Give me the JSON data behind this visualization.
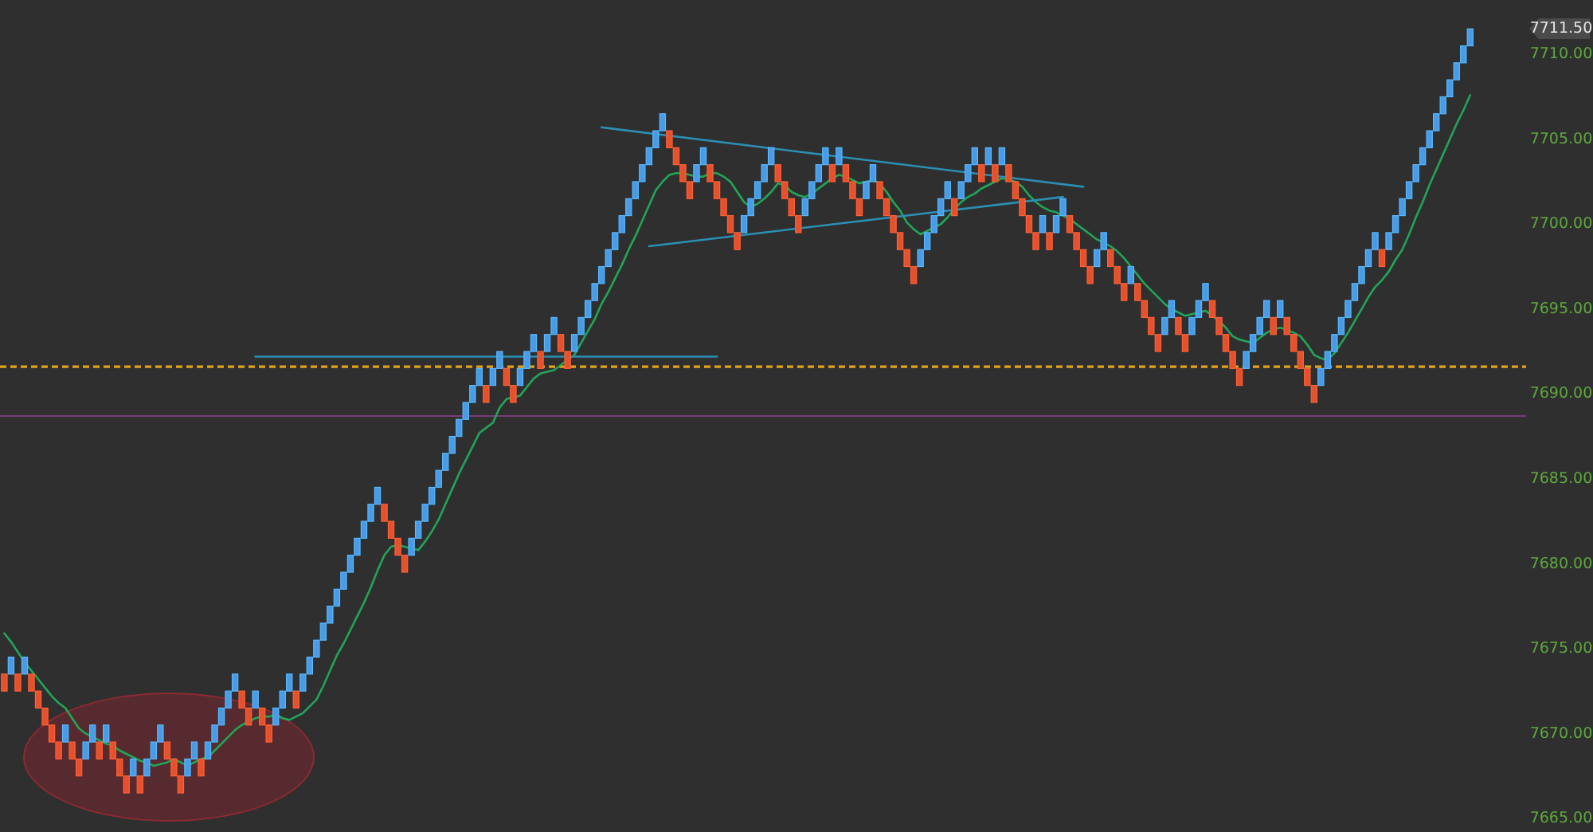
{
  "chart_data": {
    "type": "candlestick",
    "categories": [
      null,
      null,
      null,
      null,
      null,
      null,
      null,
      null,
      null,
      null,
      null,
      null,
      null,
      null,
      null,
      null,
      null,
      null,
      null,
      null,
      null,
      null,
      null,
      null,
      null,
      null,
      null,
      null,
      null,
      null,
      null,
      null,
      null,
      null,
      null,
      null,
      null,
      null,
      null,
      null,
      null,
      null,
      null,
      null,
      null,
      null,
      null,
      null,
      null,
      null,
      null,
      null,
      null,
      null,
      null,
      null,
      null,
      null,
      null,
      null,
      null,
      null,
      null,
      null,
      null,
      null,
      null,
      null,
      null,
      null,
      null,
      null,
      null,
      null,
      null,
      null,
      null,
      null,
      null,
      null,
      null,
      null,
      null,
      null,
      null,
      null,
      null,
      null,
      null,
      null,
      null,
      null,
      null,
      null,
      null,
      null,
      null,
      null,
      null,
      null,
      null,
      null,
      null,
      null,
      null,
      null,
      null,
      null,
      null,
      null,
      null,
      null,
      null,
      null,
      null,
      null,
      null,
      null,
      null,
      null,
      null,
      null,
      null,
      null,
      null,
      null,
      null,
      null,
      null,
      null,
      null,
      null,
      null,
      null,
      null,
      null,
      null,
      null,
      null,
      null,
      null,
      null,
      null,
      null,
      null,
      null,
      null,
      null,
      null,
      null,
      null,
      null,
      null,
      null,
      null,
      null,
      null,
      null,
      null,
      null,
      null,
      null,
      null,
      null,
      null,
      null,
      null,
      null,
      null,
      null,
      null,
      null,
      null,
      null,
      null,
      null,
      null,
      null,
      null,
      null,
      null,
      null,
      null,
      null,
      null,
      null,
      null,
      null,
      null,
      null,
      null,
      null,
      null,
      null,
      null,
      null,
      null,
      null,
      null,
      null,
      null,
      null,
      null,
      null,
      null,
      null,
      null,
      null,
      null,
      null,
      null,
      null,
      null,
      null,
      null,
      null,
      null
    ],
    "ohlc": [
      [
        7673.5,
        7673.5,
        7672.5,
        7672.5
      ],
      [
        7673.5,
        7674.5,
        7673.5,
        7674.5
      ],
      [
        7673.5,
        7673.5,
        7672.5,
        7672.5
      ],
      [
        7673.5,
        7674.5,
        7673.5,
        7674.5
      ],
      [
        7673.5,
        7673.5,
        7672.5,
        7672.5
      ],
      [
        7672.5,
        7672.5,
        7671.5,
        7671.5
      ],
      [
        7671.5,
        7671.5,
        7670.5,
        7670.5
      ],
      [
        7670.5,
        7670.5,
        7669.5,
        7669.5
      ],
      [
        7669.5,
        7669.5,
        7668.5,
        7668.5
      ],
      [
        7669.5,
        7670.5,
        7669.5,
        7670.5
      ],
      [
        7669.5,
        7669.5,
        7668.5,
        7668.5
      ],
      [
        7668.5,
        7668.5,
        7667.5,
        7667.5
      ],
      [
        7668.5,
        7669.5,
        7668.5,
        7669.5
      ],
      [
        7669.5,
        7670.5,
        7669.5,
        7670.5
      ],
      [
        7669.5,
        7669.5,
        7668.5,
        7668.5
      ],
      [
        7669.5,
        7670.5,
        7669.5,
        7670.5
      ],
      [
        7669.5,
        7669.5,
        7668.5,
        7668.5
      ],
      [
        7668.5,
        7668.5,
        7667.5,
        7667.5
      ],
      [
        7667.5,
        7667.5,
        7666.5,
        7666.5
      ],
      [
        7667.5,
        7668.5,
        7667.5,
        7668.5
      ],
      [
        7667.5,
        7667.5,
        7666.5,
        7666.5
      ],
      [
        7667.5,
        7668.5,
        7667.5,
        7668.5
      ],
      [
        7668.5,
        7669.5,
        7668.5,
        7669.5
      ],
      [
        7669.5,
        7670.5,
        7669.5,
        7670.5
      ],
      [
        7669.5,
        7669.5,
        7668.5,
        7668.5
      ],
      [
        7668.5,
        7668.5,
        7667.5,
        7667.5
      ],
      [
        7667.5,
        7667.5,
        7666.5,
        7666.5
      ],
      [
        7667.5,
        7668.5,
        7667.5,
        7668.5
      ],
      [
        7668.5,
        7669.5,
        7668.5,
        7669.5
      ],
      [
        7668.5,
        7668.5,
        7667.5,
        7667.5
      ],
      [
        7668.5,
        7669.5,
        7668.5,
        7669.5
      ],
      [
        7669.5,
        7670.5,
        7669.5,
        7670.5
      ],
      [
        7670.5,
        7671.5,
        7670.5,
        7671.5
      ],
      [
        7671.5,
        7672.5,
        7671.5,
        7672.5
      ],
      [
        7672.5,
        7673.5,
        7672.5,
        7673.5
      ],
      [
        7672.5,
        7672.5,
        7671.5,
        7671.5
      ],
      [
        7671.5,
        7671.5,
        7670.5,
        7670.5
      ],
      [
        7671.5,
        7672.5,
        7671.5,
        7672.5
      ],
      [
        7671.5,
        7671.5,
        7670.5,
        7670.5
      ],
      [
        7670.5,
        7670.5,
        7669.5,
        7669.5
      ],
      [
        7670.5,
        7671.5,
        7670.5,
        7671.5
      ],
      [
        7671.5,
        7672.5,
        7671.5,
        7672.5
      ],
      [
        7672.5,
        7673.5,
        7672.5,
        7673.5
      ],
      [
        7672.5,
        7672.5,
        7671.5,
        7671.5
      ],
      [
        7672.5,
        7673.5,
        7672.5,
        7673.5
      ],
      [
        7673.5,
        7674.5,
        7673.5,
        7674.5
      ],
      [
        7674.5,
        7675.5,
        7674.5,
        7675.5
      ],
      [
        7675.5,
        7676.5,
        7675.5,
        7676.5
      ],
      [
        7676.5,
        7677.5,
        7676.5,
        7677.5
      ],
      [
        7677.5,
        7678.5,
        7677.5,
        7678.5
      ],
      [
        7678.5,
        7679.5,
        7678.5,
        7679.5
      ],
      [
        7679.5,
        7680.5,
        7679.5,
        7680.5
      ],
      [
        7680.5,
        7681.5,
        7680.5,
        7681.5
      ],
      [
        7681.5,
        7682.5,
        7681.5,
        7682.5
      ],
      [
        7682.5,
        7683.5,
        7682.5,
        7683.5
      ],
      [
        7683.5,
        7684.5,
        7683.5,
        7684.5
      ],
      [
        7683.5,
        7683.5,
        7682.5,
        7682.5
      ],
      [
        7682.5,
        7682.5,
        7681.5,
        7681.5
      ],
      [
        7681.5,
        7681.5,
        7680.5,
        7680.5
      ],
      [
        7680.5,
        7680.5,
        7679.5,
        7679.5
      ],
      [
        7680.5,
        7681.5,
        7680.5,
        7681.5
      ],
      [
        7681.5,
        7682.5,
        7681.5,
        7682.5
      ],
      [
        7682.5,
        7683.5,
        7682.5,
        7683.5
      ],
      [
        7683.5,
        7684.5,
        7683.5,
        7684.5
      ],
      [
        7684.5,
        7685.5,
        7684.5,
        7685.5
      ],
      [
        7685.5,
        7686.5,
        7685.5,
        7686.5
      ],
      [
        7686.5,
        7687.5,
        7686.5,
        7687.5
      ],
      [
        7687.5,
        7688.5,
        7687.5,
        7688.5
      ],
      [
        7688.5,
        7689.5,
        7688.5,
        7689.5
      ],
      [
        7689.5,
        7690.5,
        7689.5,
        7690.5
      ],
      [
        7690.5,
        7691.5,
        7690.5,
        7691.5
      ],
      [
        7690.5,
        7690.5,
        7689.5,
        7689.5
      ],
      [
        7690.5,
        7691.5,
        7690.5,
        7691.5
      ],
      [
        7691.5,
        7692.5,
        7691.5,
        7692.5
      ],
      [
        7691.5,
        7691.5,
        7690.5,
        7690.5
      ],
      [
        7690.5,
        7690.5,
        7689.5,
        7689.5
      ],
      [
        7690.5,
        7691.5,
        7690.5,
        7691.5
      ],
      [
        7691.5,
        7692.5,
        7691.5,
        7692.5
      ],
      [
        7692.5,
        7693.5,
        7692.5,
        7693.5
      ],
      [
        7692.5,
        7692.5,
        7691.5,
        7691.5
      ],
      [
        7692.5,
        7693.5,
        7692.5,
        7693.5
      ],
      [
        7693.5,
        7694.5,
        7693.5,
        7694.5
      ],
      [
        7693.5,
        7693.5,
        7692.5,
        7692.5
      ],
      [
        7692.5,
        7692.5,
        7691.5,
        7691.5
      ],
      [
        7692.5,
        7693.5,
        7692.5,
        7693.5
      ],
      [
        7693.5,
        7694.5,
        7693.5,
        7694.5
      ],
      [
        7694.5,
        7695.5,
        7694.5,
        7695.5
      ],
      [
        7695.5,
        7696.5,
        7695.5,
        7696.5
      ],
      [
        7696.5,
        7697.5,
        7696.5,
        7697.5
      ],
      [
        7697.5,
        7698.5,
        7697.5,
        7698.5
      ],
      [
        7698.5,
        7699.5,
        7698.5,
        7699.5
      ],
      [
        7699.5,
        7700.5,
        7699.5,
        7700.5
      ],
      [
        7700.5,
        7701.5,
        7700.5,
        7701.5
      ],
      [
        7701.5,
        7702.5,
        7701.5,
        7702.5
      ],
      [
        7702.5,
        7703.5,
        7702.5,
        7703.5
      ],
      [
        7703.5,
        7704.5,
        7703.5,
        7704.5
      ],
      [
        7704.5,
        7705.5,
        7704.5,
        7705.5
      ],
      [
        7705.5,
        7706.5,
        7705.5,
        7706.5
      ],
      [
        7705.5,
        7705.5,
        7704.5,
        7704.5
      ],
      [
        7704.5,
        7704.5,
        7703.5,
        7703.5
      ],
      [
        7703.5,
        7703.5,
        7702.5,
        7702.5
      ],
      [
        7702.5,
        7702.5,
        7701.5,
        7701.5
      ],
      [
        7702.5,
        7703.5,
        7702.5,
        7703.5
      ],
      [
        7703.5,
        7704.5,
        7703.5,
        7704.5
      ],
      [
        7703.5,
        7703.5,
        7702.5,
        7702.5
      ],
      [
        7702.5,
        7702.5,
        7701.5,
        7701.5
      ],
      [
        7701.5,
        7701.5,
        7700.5,
        7700.5
      ],
      [
        7700.5,
        7700.5,
        7699.5,
        7699.5
      ],
      [
        7699.5,
        7699.5,
        7698.5,
        7698.5
      ],
      [
        7699.5,
        7700.5,
        7699.5,
        7700.5
      ],
      [
        7700.5,
        7701.5,
        7700.5,
        7701.5
      ],
      [
        7701.5,
        7702.5,
        7701.5,
        7702.5
      ],
      [
        7702.5,
        7703.5,
        7702.5,
        7703.5
      ],
      [
        7703.5,
        7704.5,
        7703.5,
        7704.5
      ],
      [
        7703.5,
        7703.5,
        7702.5,
        7702.5
      ],
      [
        7702.5,
        7702.5,
        7701.5,
        7701.5
      ],
      [
        7701.5,
        7701.5,
        7700.5,
        7700.5
      ],
      [
        7700.5,
        7700.5,
        7699.5,
        7699.5
      ],
      [
        7700.5,
        7701.5,
        7700.5,
        7701.5
      ],
      [
        7701.5,
        7702.5,
        7701.5,
        7702.5
      ],
      [
        7702.5,
        7703.5,
        7702.5,
        7703.5
      ],
      [
        7703.5,
        7704.5,
        7703.5,
        7704.5
      ],
      [
        7703.5,
        7703.5,
        7702.5,
        7702.5
      ],
      [
        7703.5,
        7704.5,
        7703.5,
        7704.5
      ],
      [
        7703.5,
        7703.5,
        7702.5,
        7702.5
      ],
      [
        7702.5,
        7702.5,
        7701.5,
        7701.5
      ],
      [
        7701.5,
        7701.5,
        7700.5,
        7700.5
      ],
      [
        7701.5,
        7702.5,
        7701.5,
        7702.5
      ],
      [
        7702.5,
        7703.5,
        7702.5,
        7703.5
      ],
      [
        7702.5,
        7702.5,
        7701.5,
        7701.5
      ],
      [
        7701.5,
        7701.5,
        7700.5,
        7700.5
      ],
      [
        7700.5,
        7700.5,
        7699.5,
        7699.5
      ],
      [
        7699.5,
        7699.5,
        7698.5,
        7698.5
      ],
      [
        7698.5,
        7698.5,
        7697.5,
        7697.5
      ],
      [
        7697.5,
        7697.5,
        7696.5,
        7696.5
      ],
      [
        7697.5,
        7698.5,
        7697.5,
        7698.5
      ],
      [
        7698.5,
        7699.5,
        7698.5,
        7699.5
      ],
      [
        7699.5,
        7700.5,
        7699.5,
        7700.5
      ],
      [
        7700.5,
        7701.5,
        7700.5,
        7701.5
      ],
      [
        7701.5,
        7702.5,
        7701.5,
        7702.5
      ],
      [
        7701.5,
        7701.5,
        7700.5,
        7700.5
      ],
      [
        7701.5,
        7702.5,
        7701.5,
        7702.5
      ],
      [
        7702.5,
        7703.5,
        7702.5,
        7703.5
      ],
      [
        7703.5,
        7704.5,
        7703.5,
        7704.5
      ],
      [
        7703.5,
        7703.5,
        7702.5,
        7702.5
      ],
      [
        7703.5,
        7704.5,
        7703.5,
        7704.5
      ],
      [
        7703.5,
        7703.5,
        7702.5,
        7702.5
      ],
      [
        7703.5,
        7704.5,
        7703.5,
        7704.5
      ],
      [
        7703.5,
        7703.5,
        7702.5,
        7702.5
      ],
      [
        7702.5,
        7702.5,
        7701.5,
        7701.5
      ],
      [
        7701.5,
        7701.5,
        7700.5,
        7700.5
      ],
      [
        7700.5,
        7700.5,
        7699.5,
        7699.5
      ],
      [
        7699.5,
        7699.5,
        7698.5,
        7698.5
      ],
      [
        7699.5,
        7700.5,
        7699.5,
        7700.5
      ],
      [
        7699.5,
        7699.5,
        7698.5,
        7698.5
      ],
      [
        7699.5,
        7700.5,
        7699.5,
        7700.5
      ],
      [
        7700.5,
        7701.5,
        7700.5,
        7701.5
      ],
      [
        7700.5,
        7700.5,
        7699.5,
        7699.5
      ],
      [
        7699.5,
        7699.5,
        7698.5,
        7698.5
      ],
      [
        7698.5,
        7698.5,
        7697.5,
        7697.5
      ],
      [
        7697.5,
        7697.5,
        7696.5,
        7696.5
      ],
      [
        7697.5,
        7698.5,
        7697.5,
        7698.5
      ],
      [
        7698.5,
        7699.5,
        7698.5,
        7699.5
      ],
      [
        7698.5,
        7698.5,
        7697.5,
        7697.5
      ],
      [
        7697.5,
        7697.5,
        7696.5,
        7696.5
      ],
      [
        7696.5,
        7696.5,
        7695.5,
        7695.5
      ],
      [
        7696.5,
        7697.5,
        7696.5,
        7697.5
      ],
      [
        7696.5,
        7696.5,
        7695.5,
        7695.5
      ],
      [
        7695.5,
        7695.5,
        7694.5,
        7694.5
      ],
      [
        7694.5,
        7694.5,
        7693.5,
        7693.5
      ],
      [
        7693.5,
        7693.5,
        7692.5,
        7692.5
      ],
      [
        7693.5,
        7694.5,
        7693.5,
        7694.5
      ],
      [
        7694.5,
        7695.5,
        7694.5,
        7695.5
      ],
      [
        7694.5,
        7694.5,
        7693.5,
        7693.5
      ],
      [
        7693.5,
        7693.5,
        7692.5,
        7692.5
      ],
      [
        7693.5,
        7694.5,
        7693.5,
        7694.5
      ],
      [
        7694.5,
        7695.5,
        7694.5,
        7695.5
      ],
      [
        7695.5,
        7696.5,
        7695.5,
        7696.5
      ],
      [
        7695.5,
        7695.5,
        7694.5,
        7694.5
      ],
      [
        7694.5,
        7694.5,
        7693.5,
        7693.5
      ],
      [
        7693.5,
        7693.5,
        7692.5,
        7692.5
      ],
      [
        7692.5,
        7692.5,
        7691.5,
        7691.5
      ],
      [
        7691.5,
        7691.5,
        7690.5,
        7690.5
      ],
      [
        7691.5,
        7692.5,
        7691.5,
        7692.5
      ],
      [
        7692.5,
        7693.5,
        7692.5,
        7693.5
      ],
      [
        7693.5,
        7694.5,
        7693.5,
        7694.5
      ],
      [
        7694.5,
        7695.5,
        7694.5,
        7695.5
      ],
      [
        7694.5,
        7694.5,
        7693.5,
        7693.5
      ],
      [
        7694.5,
        7695.5,
        7694.5,
        7695.5
      ],
      [
        7694.5,
        7694.5,
        7693.5,
        7693.5
      ],
      [
        7693.5,
        7693.5,
        7692.5,
        7692.5
      ],
      [
        7692.5,
        7692.5,
        7691.5,
        7691.5
      ],
      [
        7691.5,
        7691.5,
        7690.5,
        7690.5
      ],
      [
        7690.5,
        7690.5,
        7689.5,
        7689.5
      ],
      [
        7690.5,
        7691.5,
        7690.5,
        7691.5
      ],
      [
        7691.5,
        7692.5,
        7691.5,
        7692.5
      ],
      [
        7692.5,
        7693.5,
        7692.5,
        7693.5
      ],
      [
        7693.5,
        7694.5,
        7693.5,
        7694.5
      ],
      [
        7694.5,
        7695.5,
        7694.5,
        7695.5
      ],
      [
        7695.5,
        7696.5,
        7695.5,
        7696.5
      ],
      [
        7696.5,
        7697.5,
        7696.5,
        7697.5
      ],
      [
        7697.5,
        7698.5,
        7697.5,
        7698.5
      ],
      [
        7698.5,
        7699.5,
        7698.5,
        7699.5
      ],
      [
        7698.5,
        7698.5,
        7697.5,
        7697.5
      ],
      [
        7698.5,
        7699.5,
        7698.5,
        7699.5
      ],
      [
        7699.5,
        7700.5,
        7699.5,
        7700.5
      ],
      [
        7700.5,
        7701.5,
        7700.5,
        7701.5
      ],
      [
        7701.5,
        7702.5,
        7701.5,
        7702.5
      ],
      [
        7702.5,
        7703.5,
        7702.5,
        7703.5
      ],
      [
        7703.5,
        7704.5,
        7703.5,
        7704.5
      ],
      [
        7704.5,
        7705.5,
        7704.5,
        7705.5
      ],
      [
        7705.5,
        7706.5,
        7705.5,
        7706.5
      ],
      [
        7706.5,
        7707.5,
        7706.5,
        7707.5
      ],
      [
        7707.5,
        7708.5,
        7707.5,
        7708.5
      ],
      [
        7708.5,
        7709.5,
        7708.5,
        7709.5
      ],
      [
        7709.5,
        7710.5,
        7709.5,
        7710.5
      ],
      [
        7710.5,
        7711.5,
        7710.5,
        7711.5
      ]
    ],
    "colors": [
      "#e5512d",
      "#4a9be6",
      "#e5512d",
      "#4a9be6",
      "#e5512d",
      "#e5512d",
      "#e5512d",
      "#e5512d",
      "#e5512d",
      "#4a9be6",
      "#e5512d",
      "#e5512d",
      "#4a9be6",
      "#4a9be6",
      "#e5512d",
      "#4a9be6",
      "#e5512d",
      "#e5512d",
      "#e5512d",
      "#4a9be6",
      "#e5512d",
      "#4a9be6",
      "#4a9be6",
      "#4a9be6",
      "#e5512d",
      "#e5512d",
      "#e5512d",
      "#4a9be6",
      "#4a9be6",
      "#e5512d",
      "#4a9be6",
      "#4a9be6",
      "#4a9be6",
      "#4a9be6",
      "#4a9be6",
      "#e5512d",
      "#e5512d",
      "#4a9be6",
      "#e5512d",
      "#e5512d",
      "#4a9be6",
      "#4a9be6",
      "#4a9be6",
      "#e5512d",
      "#4a9be6",
      "#4a9be6",
      "#4a9be6",
      "#4a9be6",
      "#4a9be6",
      "#4a9be6",
      "#4a9be6",
      "#4a9be6",
      "#4a9be6",
      "#4a9be6",
      "#4a9be6",
      "#4a9be6",
      "#e5512d",
      "#e5512d",
      "#e5512d",
      "#e5512d",
      "#4a9be6",
      "#4a9be6",
      "#4a9be6",
      "#4a9be6",
      "#4a9be6",
      "#4a9be6",
      "#4a9be6",
      "#4a9be6",
      "#4a9be6",
      "#4a9be6",
      "#4a9be6",
      "#e5512d",
      "#4a9be6",
      "#4a9be6",
      "#e5512d",
      "#e5512d",
      "#4a9be6",
      "#4a9be6",
      "#4a9be6",
      "#e5512d",
      "#4a9be6",
      "#4a9be6",
      "#e5512d",
      "#e5512d",
      "#4a9be6",
      "#4a9be6",
      "#4a9be6",
      "#4a9be6",
      "#4a9be6",
      "#4a9be6",
      "#4a9be6",
      "#4a9be6",
      "#4a9be6",
      "#4a9be6",
      "#4a9be6",
      "#4a9be6",
      "#4a9be6",
      "#4a9be6",
      "#e5512d",
      "#e5512d",
      "#e5512d",
      "#e5512d",
      "#4a9be6",
      "#4a9be6",
      "#e5512d",
      "#e5512d",
      "#e5512d",
      "#e5512d",
      "#e5512d",
      "#4a9be6",
      "#4a9be6",
      "#4a9be6",
      "#4a9be6",
      "#4a9be6",
      "#e5512d",
      "#e5512d",
      "#e5512d",
      "#e5512d",
      "#4a9be6",
      "#4a9be6",
      "#4a9be6",
      "#4a9be6",
      "#e5512d",
      "#4a9be6",
      "#e5512d",
      "#e5512d",
      "#e5512d",
      "#4a9be6",
      "#4a9be6",
      "#e5512d",
      "#e5512d",
      "#e5512d",
      "#e5512d",
      "#e5512d",
      "#e5512d",
      "#4a9be6",
      "#4a9be6",
      "#4a9be6",
      "#4a9be6",
      "#4a9be6",
      "#e5512d",
      "#4a9be6",
      "#4a9be6",
      "#4a9be6",
      "#e5512d",
      "#4a9be6",
      "#e5512d",
      "#4a9be6",
      "#e5512d",
      "#e5512d",
      "#e5512d",
      "#e5512d",
      "#e5512d",
      "#4a9be6",
      "#e5512d",
      "#4a9be6",
      "#4a9be6",
      "#e5512d",
      "#e5512d",
      "#e5512d",
      "#e5512d",
      "#4a9be6",
      "#4a9be6",
      "#e5512d",
      "#e5512d",
      "#e5512d",
      "#4a9be6",
      "#e5512d",
      "#e5512d",
      "#e5512d",
      "#e5512d",
      "#4a9be6",
      "#4a9be6",
      "#e5512d",
      "#e5512d",
      "#4a9be6",
      "#4a9be6",
      "#4a9be6",
      "#e5512d",
      "#e5512d",
      "#e5512d",
      "#e5512d",
      "#e5512d",
      "#4a9be6",
      "#4a9be6",
      "#4a9be6",
      "#4a9be6",
      "#e5512d",
      "#4a9be6",
      "#e5512d",
      "#e5512d",
      "#e5512d",
      "#e5512d",
      "#e5512d",
      "#4a9be6",
      "#4a9be6",
      "#4a9be6",
      "#4a9be6",
      "#4a9be6",
      "#4a9be6",
      "#4a9be6",
      "#4a9be6",
      "#4a9be6",
      "#e5512d",
      "#4a9be6",
      "#4a9be6",
      "#4a9be6",
      "#4a9be6",
      "#4a9be6",
      "#4a9be6",
      "#4a9be6",
      "#4a9be6",
      "#4a9be6",
      "#4a9be6",
      "#4a9be6",
      "#4a9be6",
      "#4a9be6"
    ],
    "series": [
      {
        "type": "line",
        "color": "#22a558",
        "values": [
          7675.9,
          7675.4,
          7674.8,
          7674.2,
          7673.7,
          7673.2,
          7672.7,
          7672.2,
          7671.8,
          7671.5,
          7670.9,
          7670.3,
          7670.0,
          7669.8,
          7669.6,
          7669.4,
          7669.3,
          7669.0,
          7668.8,
          7668.6,
          7668.4,
          7668.3,
          7668.1,
          7668.2,
          7668.3,
          7668.5,
          7668.3,
          7668.1,
          7668.3,
          7668.5,
          7668.6,
          7669.0,
          7669.4,
          7669.8,
          7670.2,
          7670.5,
          7670.7,
          7670.9,
          7671.0,
          7671.0,
          7671.1,
          7670.9,
          7670.8,
          7671.0,
          7671.2,
          7671.6,
          7672.0,
          7672.8,
          7673.7,
          7674.6,
          7675.3,
          7676.1,
          7676.9,
          7677.7,
          7678.6,
          7679.6,
          7680.5,
          7681.0,
          7681.1,
          7681.0,
          7680.9,
          7680.8,
          7681.3,
          7681.9,
          7682.6,
          7683.5,
          7684.4,
          7685.3,
          7686.1,
          7686.9,
          7687.7,
          7688.0,
          7688.3,
          7689.2,
          7689.7,
          7689.8,
          7689.9,
          7690.4,
          7690.9,
          7691.2,
          7691.3,
          7691.4,
          7691.7,
          7692.0,
          7692.3,
          7693.0,
          7693.7,
          7694.4,
          7695.3,
          7696.0,
          7696.8,
          7697.6,
          7698.5,
          7699.3,
          7700.2,
          7701.1,
          7702.0,
          7702.5,
          7702.9,
          7703.0,
          7703.0,
          7702.9,
          7702.8,
          7702.8,
          7703.0,
          7703.0,
          7702.8,
          7702.5,
          7701.9,
          7701.3,
          7701.0,
          7701.2,
          7701.5,
          7701.9,
          7702.4,
          7702.3,
          7701.9,
          7701.7,
          7701.6,
          7701.8,
          7702.1,
          7702.4,
          7702.7,
          7702.9,
          7702.8,
          7702.6,
          7702.4,
          7702.5,
          7702.6,
          7702.4,
          7701.9,
          7701.3,
          7700.8,
          7700.1,
          7699.7,
          7699.4,
          7699.6,
          7699.8,
          7700.0,
          7700.4,
          7700.9,
          7701.3,
          7701.6,
          7701.8,
          7702.1,
          7702.3,
          7702.5,
          7702.7,
          7702.6,
          7702.5,
          7702.2,
          7701.7,
          7701.3,
          7701.0,
          7700.8,
          7700.7,
          7700.5,
          7700.3,
          7700.0,
          7699.7,
          7699.4,
          7699.1,
          7698.9,
          7698.7,
          7698.4,
          7698.0,
          7697.5,
          7697.0,
          7696.5,
          7696.1,
          7695.7,
          7695.3,
          7695.0,
          7694.8,
          7694.6,
          7694.7,
          7694.8,
          7694.9,
          7694.6,
          7694.3,
          7693.9,
          7693.4,
          7693.2,
          7693.1,
          7693.0,
          7693.3,
          7693.6,
          7693.8,
          7693.9,
          7693.8,
          7693.6,
          7693.4,
          7692.9,
          7692.3,
          7692.1,
          7692.0,
          7692.4,
          7693.0,
          7693.6,
          7694.3,
          7695.0,
          7695.7,
          7696.3,
          7696.7,
          7697.2,
          7697.9,
          7698.5,
          7699.4,
          7700.4,
          7701.3,
          7702.3,
          7703.2,
          7704.1,
          7705.0,
          7705.9,
          7706.7,
          7707.6
        ]
      },
      {
        "type": "line",
        "color": "#2b8fb3",
        "values": [
          null,
          null,
          null,
          null,
          null,
          null,
          null,
          null,
          null,
          null,
          null,
          null,
          null,
          null,
          null,
          null,
          null,
          null,
          null,
          null,
          null,
          null,
          null,
          null,
          null,
          null,
          null,
          null,
          null,
          null,
          null,
          null,
          null,
          null,
          null,
          null,
          null,
          7692.2,
          null,
          null,
          null,
          null,
          null,
          null,
          null,
          null,
          null,
          null,
          null,
          null,
          null,
          null,
          null,
          null,
          null,
          null,
          null,
          null,
          null,
          null,
          null,
          null,
          null,
          null,
          null,
          null,
          null,
          null,
          null,
          null,
          null,
          null,
          null,
          null,
          null,
          null,
          null,
          null,
          null,
          null,
          null,
          null,
          null,
          null,
          null,
          null,
          null,
          null,
          null,
          null,
          null,
          null,
          null,
          null,
          null,
          null,
          null,
          null,
          null,
          null,
          null,
          null,
          null,
          null,
          null,
          7692.2,
          null,
          null,
          null,
          null,
          null,
          null,
          null,
          null,
          null,
          null,
          null,
          null,
          null,
          null,
          null,
          null,
          null,
          null,
          null,
          null,
          null,
          null,
          null,
          null,
          null,
          null,
          null,
          null,
          null,
          null,
          null,
          null,
          null,
          null,
          null,
          null,
          null,
          null,
          null,
          null,
          null,
          null,
          null,
          null,
          null,
          null,
          null,
          null,
          null,
          null,
          null,
          null,
          null,
          null,
          null,
          null,
          null,
          null,
          null,
          null,
          null,
          null,
          null,
          null,
          null,
          null,
          null,
          null,
          null,
          null,
          null,
          null,
          null,
          null,
          null,
          null,
          null,
          null,
          null,
          null,
          null,
          null,
          null,
          null,
          null,
          null,
          null,
          null,
          null,
          null,
          null,
          null,
          null,
          null,
          null,
          null,
          null,
          null,
          null,
          null,
          null,
          null,
          null,
          null,
          null,
          null,
          null,
          null,
          null,
          null,
          null
        ]
      },
      {
        "type": "line",
        "color": "#2b8fb3",
        "values": [
          null,
          null,
          null,
          null,
          null,
          null,
          null,
          null,
          null,
          null,
          null,
          null,
          null,
          null,
          null,
          null,
          null,
          null,
          null,
          null,
          null,
          null,
          null,
          null,
          null,
          null,
          null,
          null,
          null,
          null,
          null,
          null,
          null,
          null,
          null,
          null,
          null,
          null,
          null,
          null,
          null,
          null,
          null,
          null,
          null,
          null,
          null,
          null,
          null,
          null,
          null,
          null,
          null,
          null,
          null,
          null,
          null,
          null,
          null,
          null,
          null,
          null,
          null,
          null,
          null,
          null,
          null,
          null,
          null,
          null,
          null,
          null,
          null,
          null,
          null,
          null,
          null,
          null,
          null,
          null,
          null,
          null,
          null,
          null,
          null,
          null,
          null,
          null,
          7705.7,
          null,
          null,
          null,
          null,
          null,
          null,
          null,
          null,
          null,
          null,
          null,
          null,
          null,
          null,
          null,
          null,
          null,
          null,
          null,
          null,
          null,
          null,
          null,
          null,
          null,
          null,
          null,
          null,
          null,
          null,
          null,
          null,
          null,
          null,
          null,
          null,
          null,
          null,
          null,
          null,
          null,
          null,
          null,
          null,
          null,
          null,
          null,
          null,
          null,
          null,
          null,
          null,
          null,
          null,
          null,
          null,
          null,
          null,
          null,
          null,
          null,
          null,
          null,
          null,
          null,
          null,
          null,
          null,
          null,
          null,
          7702.2,
          null,
          null,
          null,
          null,
          null,
          null,
          null,
          null,
          null,
          null,
          null,
          null,
          null,
          null,
          null,
          null,
          null,
          null,
          null,
          null,
          null,
          null,
          null,
          null,
          null,
          null,
          null,
          null,
          null,
          null,
          null,
          null,
          null,
          null,
          null,
          null,
          null,
          null,
          null,
          null,
          null,
          null,
          null,
          null,
          null,
          null,
          null,
          null,
          null,
          null,
          null,
          null,
          null,
          null,
          null,
          null,
          null
        ]
      },
      {
        "type": "line",
        "color": "#2b8fb3",
        "values": [
          null,
          null,
          null,
          null,
          null,
          null,
          null,
          null,
          null,
          null,
          null,
          null,
          null,
          null,
          null,
          null,
          null,
          null,
          null,
          null,
          null,
          null,
          null,
          null,
          null,
          null,
          null,
          null,
          null,
          null,
          null,
          null,
          null,
          null,
          null,
          null,
          null,
          null,
          null,
          null,
          null,
          null,
          null,
          null,
          null,
          null,
          null,
          null,
          null,
          null,
          null,
          null,
          null,
          null,
          null,
          null,
          null,
          null,
          null,
          null,
          null,
          null,
          null,
          null,
          null,
          null,
          null,
          null,
          null,
          null,
          null,
          null,
          null,
          null,
          null,
          null,
          null,
          null,
          null,
          null,
          null,
          null,
          null,
          null,
          null,
          null,
          null,
          null,
          null,
          null,
          null,
          null,
          null,
          null,
          null,
          7698.7,
          null,
          null,
          null,
          null,
          null,
          null,
          null,
          null,
          null,
          null,
          null,
          null,
          null,
          null,
          null,
          null,
          null,
          null,
          null,
          null,
          null,
          null,
          null,
          null,
          null,
          null,
          null,
          null,
          null,
          null,
          null,
          null,
          null,
          null,
          null,
          null,
          null,
          null,
          null,
          null,
          null,
          null,
          null,
          null,
          null,
          null,
          null,
          null,
          null,
          null,
          null,
          null,
          null,
          null,
          null,
          null,
          null,
          null,
          null,
          null,
          7701.6,
          null,
          null,
          null,
          null,
          null,
          null,
          null,
          null,
          null,
          null,
          null,
          null,
          null,
          null,
          null,
          null,
          null,
          null,
          null,
          null,
          null,
          null,
          null,
          null,
          null,
          null,
          null,
          null,
          null,
          null,
          null,
          null,
          null,
          null,
          null,
          null,
          null,
          null,
          null,
          null,
          null,
          null,
          null,
          null,
          null,
          null,
          null,
          null,
          null,
          null,
          null,
          null,
          null,
          null,
          null,
          null,
          null,
          null,
          null,
          null
        ]
      }
    ],
    "ylim": [
      7664.2,
      7713.2
    ],
    "yticks": [
      {
        "value": 7665,
        "label": "7665.00"
      },
      {
        "value": 7670,
        "label": "7670.00"
      },
      {
        "value": 7675,
        "label": "7675.00"
      },
      {
        "value": 7680,
        "label": "7680.00"
      },
      {
        "value": 7685,
        "label": "7685.00"
      },
      {
        "value": 7690,
        "label": "7690.00"
      },
      {
        "value": 7695,
        "label": "7695.00"
      },
      {
        "value": 7700,
        "label": "7700.00"
      },
      {
        "value": 7705,
        "label": "7705.00"
      },
      {
        "value": 7710,
        "label": "7710.00"
      }
    ],
    "tick_labels": "y",
    "ref_lines": [
      {
        "axis": "y",
        "value": 7691.6,
        "color": "#e3a21a",
        "line_style": "dashed"
      },
      {
        "axis": "y",
        "value": 7688.7,
        "color": "#7d3a78",
        "line_style": "solid"
      }
    ],
    "annotations": [
      "7711.50"
    ]
  }
}
